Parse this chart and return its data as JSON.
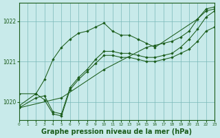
{
  "background_color": "#c8eaea",
  "grid_color": "#7ab8b8",
  "line_color": "#1a5c1a",
  "marker_color": "#1a5c1a",
  "xlabel": "Graphe pression niveau de la mer (hPa)",
  "xlabel_fontsize": 7.0,
  "xlim": [
    0,
    23
  ],
  "ylim": [
    1019.55,
    1022.45
  ],
  "yticks": [
    1020,
    1021,
    1022
  ],
  "xticks": [
    0,
    1,
    2,
    3,
    4,
    5,
    6,
    7,
    8,
    9,
    10,
    11,
    12,
    13,
    14,
    15,
    16,
    17,
    18,
    19,
    20,
    21,
    22,
    23
  ],
  "series": [
    {
      "x": [
        0,
        2,
        3,
        4,
        5,
        6,
        7,
        8,
        9,
        10,
        11,
        12,
        13,
        14,
        15,
        16,
        21,
        22,
        23
      ],
      "y": [
        1019.9,
        1020.2,
        1020.55,
        1021.05,
        1021.35,
        1021.55,
        1021.7,
        1021.75,
        1021.85,
        1021.95,
        1021.75,
        1021.65,
        1021.65,
        1021.55,
        1021.45,
        1021.35,
        1022.05,
        1022.25,
        1022.3
      ]
    },
    {
      "x": [
        0,
        2,
        3,
        4,
        5,
        6,
        7,
        8,
        9,
        10,
        11,
        12,
        13,
        14,
        15,
        16,
        17,
        18,
        19,
        20,
        21,
        22,
        23
      ],
      "y": [
        1020.2,
        1020.2,
        1020.05,
        1019.7,
        1019.65,
        1020.3,
        1020.55,
        1020.75,
        1020.95,
        1021.15,
        1021.15,
        1021.1,
        1021.1,
        1021.05,
        1021.0,
        1021.0,
        1021.05,
        1021.1,
        1021.2,
        1021.3,
        1021.5,
        1021.75,
        1021.85
      ]
    },
    {
      "x": [
        0,
        2,
        3,
        4,
        5,
        6,
        7,
        8,
        9,
        10,
        11,
        12,
        13,
        14,
        15,
        16,
        17,
        18,
        19,
        20,
        21,
        22,
        23
      ],
      "y": [
        1019.85,
        1020.1,
        1020.15,
        1019.75,
        1019.7,
        1020.35,
        1020.6,
        1020.8,
        1021.05,
        1021.25,
        1021.25,
        1021.2,
        1021.2,
        1021.15,
        1021.1,
        1021.1,
        1021.15,
        1021.2,
        1021.35,
        1021.55,
        1021.8,
        1022.1,
        1022.25
      ]
    },
    {
      "x": [
        0,
        5,
        10,
        15,
        16,
        17,
        18,
        19,
        20,
        21,
        22,
        23
      ],
      "y": [
        1019.85,
        1020.1,
        1020.8,
        1021.35,
        1021.4,
        1021.45,
        1021.5,
        1021.6,
        1021.75,
        1022.05,
        1022.3,
        1022.35
      ]
    }
  ]
}
